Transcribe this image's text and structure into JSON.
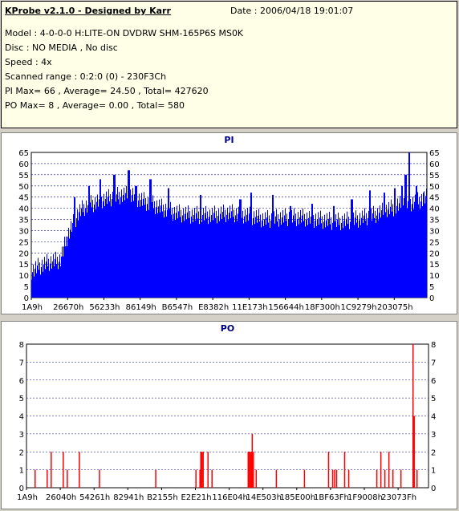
{
  "info": {
    "title": "KProbe v2.1.0 - Designed by Karr",
    "date": "Date : 2006/04/18 19:01:07",
    "lines": [
      "Model : 4-0-0-0 H:LITE-ON DVDRW SHM-165P6S MS0K",
      "Disc : NO MEDIA , No disc",
      "Speed : 4x",
      "Scanned range : 0:2:0 (0) - 230F3Ch",
      "PI Max= 66 , Average= 24.50 , Total= 427620",
      "PO Max= 8 , Average= 0.00 , Total= 580"
    ]
  },
  "colors": {
    "bar": "#0000ff",
    "po_bar": "#ff0000",
    "grid": "#0000a0",
    "title": "#000080"
  },
  "chart_data": [
    {
      "type": "bar",
      "title": "PI",
      "ylim": [
        0,
        65
      ],
      "yticks": [
        0,
        5,
        10,
        15,
        20,
        25,
        30,
        35,
        40,
        45,
        50,
        55,
        60,
        65
      ],
      "x_tick_labels": [
        "1A9h",
        "26670h",
        "56233h",
        "86149h",
        "B6547h",
        "E8382h",
        "11E173h",
        "156644h",
        "18F300h",
        "1C9279h",
        "203075h"
      ],
      "profile": [
        [
          0,
          12
        ],
        [
          2,
          14
        ],
        [
          5,
          16
        ],
        [
          8,
          17
        ],
        [
          10,
          28
        ],
        [
          13,
          38
        ],
        [
          15,
          41
        ],
        [
          20,
          44
        ],
        [
          25,
          46
        ],
        [
          28,
          46
        ],
        [
          30,
          44
        ],
        [
          35,
          41
        ],
        [
          40,
          38
        ],
        [
          45,
          37
        ],
        [
          50,
          37
        ],
        [
          55,
          38
        ],
        [
          60,
          37
        ],
        [
          65,
          35
        ],
        [
          70,
          36
        ],
        [
          75,
          36
        ],
        [
          80,
          35
        ],
        [
          85,
          34
        ],
        [
          90,
          35
        ],
        [
          95,
          37
        ],
        [
          100,
          40
        ],
        [
          103,
          42
        ],
        [
          107,
          43
        ],
        [
          110,
          45
        ]
      ],
      "spikes": [
        [
          12,
          45
        ],
        [
          16,
          50
        ],
        [
          19,
          53
        ],
        [
          23,
          55
        ],
        [
          27,
          57
        ],
        [
          29,
          50
        ],
        [
          33,
          53
        ],
        [
          38,
          49
        ],
        [
          47,
          46
        ],
        [
          58,
          44
        ],
        [
          61,
          47
        ],
        [
          67,
          46
        ],
        [
          72,
          41
        ],
        [
          78,
          42
        ],
        [
          84,
          41
        ],
        [
          89,
          44
        ],
        [
          94,
          48
        ],
        [
          98,
          47
        ],
        [
          101,
          49
        ],
        [
          103,
          50
        ],
        [
          104,
          55
        ],
        [
          105,
          66
        ],
        [
          107,
          50
        ],
        [
          109,
          47
        ]
      ]
    },
    {
      "type": "bar",
      "title": "PO",
      "ylim": [
        0,
        8
      ],
      "yticks": [
        0,
        1,
        2,
        3,
        4,
        5,
        6,
        7,
        8
      ],
      "x_tick_labels": [
        "1A9h",
        "26040h",
        "54261h",
        "82941h",
        "B2155h",
        "E2E21h",
        "116E04h",
        "14E503h",
        "185E00h",
        "1BF63Fh",
        "1F9008h",
        "23073Fh"
      ],
      "bars": [
        [
          2,
          1
        ],
        [
          5,
          1
        ],
        [
          6,
          2
        ],
        [
          9,
          2
        ],
        [
          10,
          1
        ],
        [
          13,
          2
        ],
        [
          18,
          1
        ],
        [
          32,
          1
        ],
        [
          42,
          1
        ],
        [
          43,
          1
        ],
        [
          43.2,
          2
        ],
        [
          43.5,
          2
        ],
        [
          43.8,
          2
        ],
        [
          45,
          2
        ],
        [
          46,
          1
        ],
        [
          55,
          2
        ],
        [
          55.3,
          2
        ],
        [
          55.5,
          2
        ],
        [
          55.8,
          2
        ],
        [
          56,
          3
        ],
        [
          56.3,
          2
        ],
        [
          57,
          1
        ],
        [
          62,
          1
        ],
        [
          69,
          1
        ],
        [
          75,
          2
        ],
        [
          76,
          1
        ],
        [
          76.5,
          1
        ],
        [
          77,
          1
        ],
        [
          79,
          2
        ],
        [
          80,
          1
        ],
        [
          87,
          1
        ],
        [
          88,
          2
        ],
        [
          89,
          1
        ],
        [
          90,
          2
        ],
        [
          91,
          1
        ],
        [
          93,
          1
        ],
        [
          96,
          8
        ],
        [
          96.3,
          4
        ],
        [
          97,
          1
        ]
      ]
    }
  ]
}
